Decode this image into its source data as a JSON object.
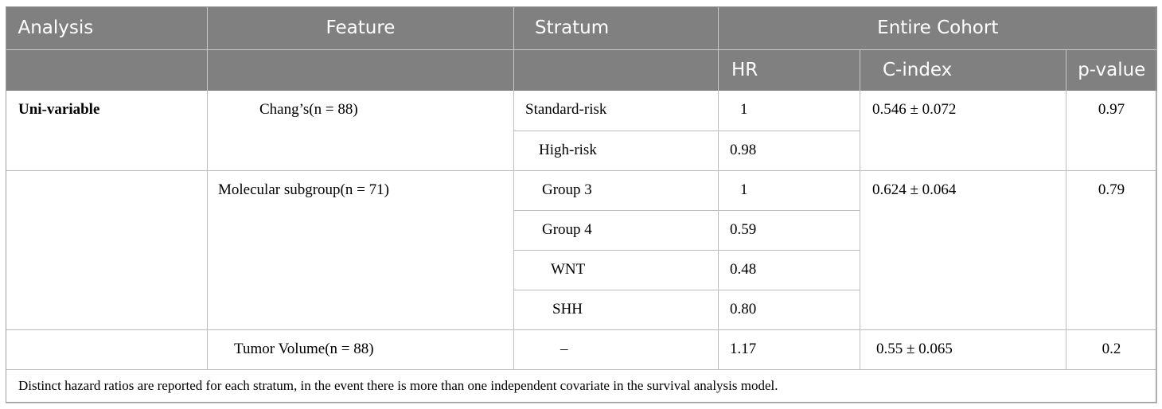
{
  "header": {
    "analysis": "Analysis",
    "feature": "Feature",
    "stratum": "Stratum",
    "entire_cohort": "Entire Cohort",
    "hr": "HR",
    "c_index": "C-index",
    "p_value": "p-value"
  },
  "rows": [
    {
      "analysis": "Uni-variable",
      "feature": "Chang’s(n = 88)",
      "stratum": "Standard-risk",
      "hr": "1",
      "c_index": "0.546 ± 0.072",
      "p_value": "0.97"
    },
    {
      "stratum": "High-risk",
      "hr": "0.98"
    },
    {
      "analysis": "",
      "feature": "Molecular subgroup(n = 71)",
      "stratum": "Group 3",
      "hr": "1",
      "c_index": "0.624 ± 0.064",
      "p_value": "0.79"
    },
    {
      "stratum": "Group 4",
      "hr": "0.59"
    },
    {
      "stratum": "WNT",
      "hr": "0.48"
    },
    {
      "stratum": "SHH",
      "hr": "0.80"
    },
    {
      "analysis": "",
      "feature": "Tumor Volume(n = 88)",
      "stratum": "–",
      "hr": "1.17",
      "c_index": "0.55 ± 0.065",
      "p_value": "0.2"
    }
  ],
  "footnote": "Distinct hazard ratios are reported for each stratum, in the event there is more than one independent covariate in the survival analysis model."
}
